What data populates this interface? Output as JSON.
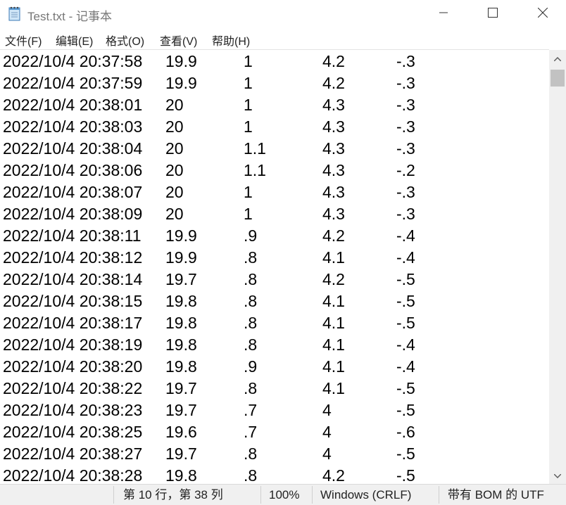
{
  "window": {
    "title": "Test.txt - 记事本",
    "controls": {
      "minimize": "minimize-icon",
      "maximize": "maximize-icon",
      "close": "close-icon"
    }
  },
  "menu": [
    "文件(F)",
    "编辑(E)",
    "格式(O)",
    "查看(V)",
    "帮助(H)"
  ],
  "lines": [
    [
      "2022/10/4 20:37:58",
      "19.9",
      "1",
      "4.2",
      "-.3"
    ],
    [
      "2022/10/4 20:37:59",
      "19.9",
      "1",
      "4.2",
      "-.3"
    ],
    [
      "2022/10/4 20:38:01",
      "20",
      "1",
      "4.3",
      "-.3"
    ],
    [
      "2022/10/4 20:38:03",
      "20",
      "1",
      "4.3",
      "-.3"
    ],
    [
      "2022/10/4 20:38:04",
      "20",
      "1.1",
      "4.3",
      "-.3"
    ],
    [
      "2022/10/4 20:38:06",
      "20",
      "1.1",
      "4.3",
      "-.2"
    ],
    [
      "2022/10/4 20:38:07",
      "20",
      "1",
      "4.3",
      "-.3"
    ],
    [
      "2022/10/4 20:38:09",
      "20",
      "1",
      "4.3",
      "-.3"
    ],
    [
      "2022/10/4 20:38:11",
      "19.9",
      ".9",
      "4.2",
      "-.4"
    ],
    [
      "2022/10/4 20:38:12",
      "19.9",
      ".8",
      "4.1",
      "-.4"
    ],
    [
      "2022/10/4 20:38:14",
      "19.7",
      ".8",
      "4.2",
      "-.5"
    ],
    [
      "2022/10/4 20:38:15",
      "19.8",
      ".8",
      "4.1",
      "-.5"
    ],
    [
      "2022/10/4 20:38:17",
      "19.8",
      ".8",
      "4.1",
      "-.5"
    ],
    [
      "2022/10/4 20:38:19",
      "19.8",
      ".8",
      "4.1",
      "-.4"
    ],
    [
      "2022/10/4 20:38:20",
      "19.8",
      ".9",
      "4.1",
      "-.4"
    ],
    [
      "2022/10/4 20:38:22",
      "19.7",
      ".8",
      "4.1",
      "-.5"
    ],
    [
      "2022/10/4 20:38:23",
      "19.7",
      ".7",
      "4",
      "-.5"
    ],
    [
      "2022/10/4 20:38:25",
      "19.6",
      ".7",
      "4",
      "-.6"
    ],
    [
      "2022/10/4 20:38:27",
      "19.7",
      ".8",
      "4",
      "-.5"
    ],
    [
      "2022/10/4 20:38:28",
      "19.8",
      ".8",
      "4.2",
      "-.5"
    ]
  ],
  "status": {
    "position": "第 10 行，第 38 列",
    "zoom": "100%",
    "line_ending": "Windows (CRLF)",
    "encoding": "带有 BOM 的 UTF"
  }
}
